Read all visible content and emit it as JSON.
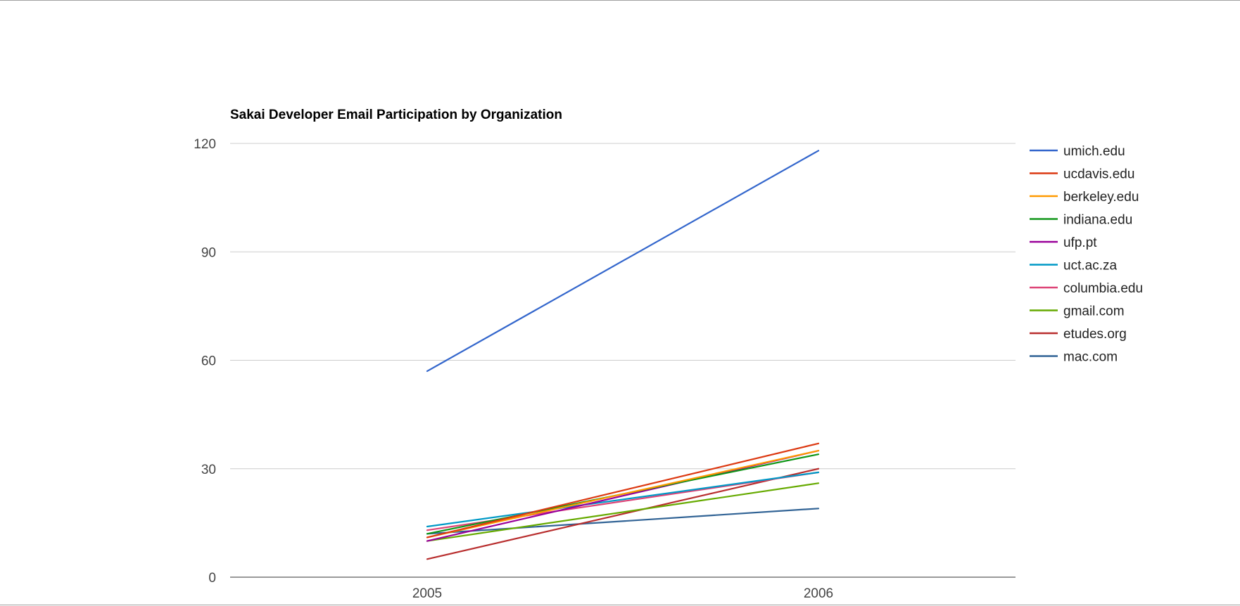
{
  "chart_data": {
    "type": "line",
    "title": "Sakai Developer Email Participation by Organization",
    "xlabel": "",
    "ylabel": "",
    "categories": [
      "2005",
      "2006"
    ],
    "ylim": [
      0,
      120
    ],
    "yticks": [
      0,
      30,
      60,
      90,
      120
    ],
    "grid": true,
    "legend_position": "right",
    "series": [
      {
        "name": "umich.edu",
        "color": "#3366cc",
        "values": [
          57,
          118
        ]
      },
      {
        "name": "ucdavis.edu",
        "color": "#dc3912",
        "values": [
          11,
          37
        ]
      },
      {
        "name": "berkeley.edu",
        "color": "#ff9900",
        "values": [
          11,
          35
        ]
      },
      {
        "name": "indiana.edu",
        "color": "#109618",
        "values": [
          12,
          34
        ]
      },
      {
        "name": "ufp.pt",
        "color": "#990099",
        "values": [
          10,
          35
        ]
      },
      {
        "name": "uct.ac.za",
        "color": "#0099c6",
        "values": [
          14,
          29
        ]
      },
      {
        "name": "columbia.edu",
        "color": "#dd4477",
        "values": [
          13,
          29
        ]
      },
      {
        "name": "gmail.com",
        "color": "#66aa00",
        "values": [
          10,
          26
        ]
      },
      {
        "name": "etudes.org",
        "color": "#b82e2e",
        "values": [
          5,
          30
        ]
      },
      {
        "name": "mac.com",
        "color": "#316395",
        "values": [
          12,
          19
        ]
      }
    ]
  }
}
